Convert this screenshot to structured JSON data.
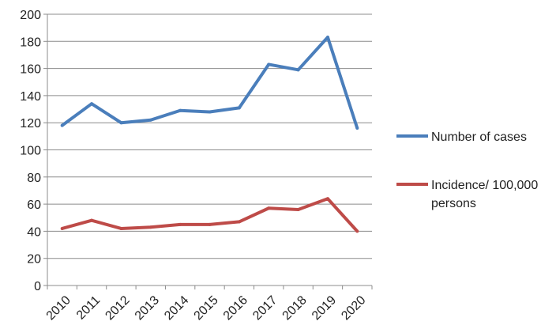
{
  "chart_data": {
    "type": "line",
    "categories": [
      "2010",
      "2011",
      "2012",
      "2013",
      "2014",
      "2015",
      "2016",
      "2017",
      "2018",
      "2019",
      "2020"
    ],
    "series": [
      {
        "name": "Number of cases",
        "color": "#4a7ebb",
        "values": [
          118,
          134,
          120,
          122,
          129,
          128,
          131,
          163,
          159,
          183,
          116
        ]
      },
      {
        "name_lines": [
          "Incidence/ 100,000",
          "persons"
        ],
        "color": "#be4b48",
        "values": [
          42,
          48,
          42,
          43,
          45,
          45,
          47,
          57,
          56,
          64,
          40
        ]
      }
    ],
    "yticks": [
      "0",
      "20",
      "40",
      "60",
      "80",
      "100",
      "120",
      "140",
      "160",
      "180",
      "200"
    ],
    "ylim": [
      0,
      200
    ],
    "grid": true,
    "legend_position": "right"
  }
}
